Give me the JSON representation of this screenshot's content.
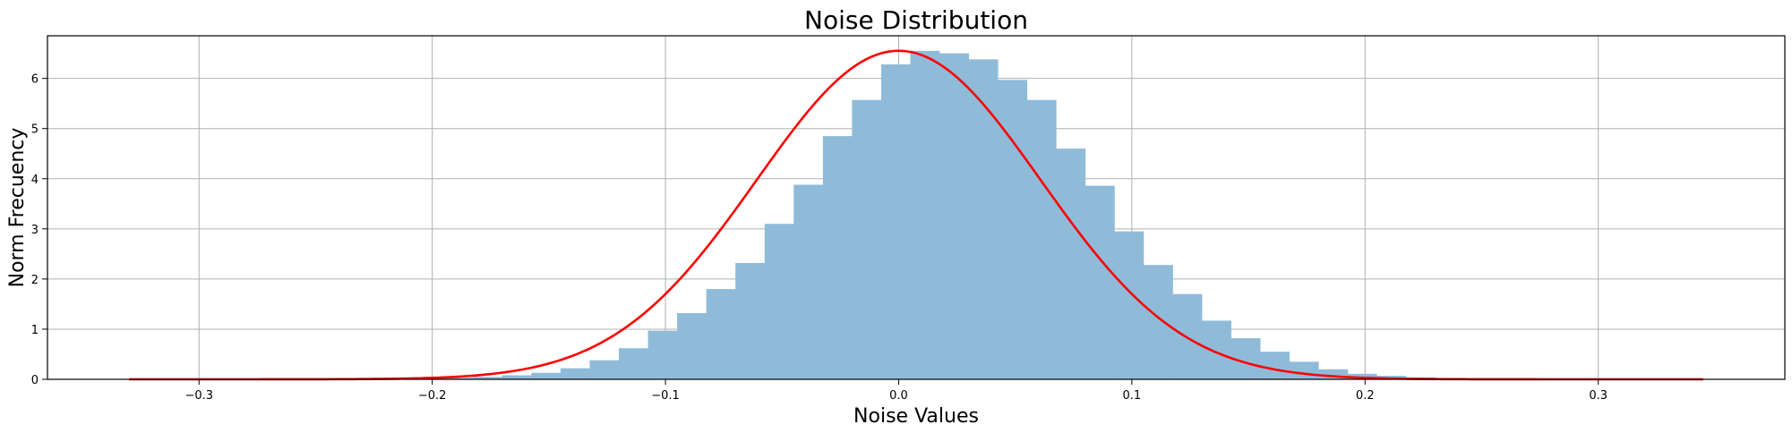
{
  "chart_data": {
    "type": "bar",
    "subtype": "histogram-with-fit",
    "title": "Noise Distribution",
    "xlabel": "Noise Values",
    "ylabel": "Norm Frecuency",
    "xlim": [
      -0.365,
      0.38
    ],
    "ylim": [
      0,
      6.85
    ],
    "grid": true,
    "x_ticks": [
      -0.3,
      -0.2,
      -0.1,
      0.0,
      0.1,
      0.2,
      0.3
    ],
    "x_tick_labels": [
      "−0.3",
      "−0.2",
      "−0.1",
      "0.0",
      "0.1",
      "0.2",
      "0.3"
    ],
    "y_ticks": [
      0,
      1,
      2,
      3,
      4,
      5,
      6
    ],
    "y_tick_labels": [
      "0",
      "1",
      "2",
      "3",
      "4",
      "5",
      "6"
    ],
    "histogram": {
      "color": "#8fbbd9",
      "bin_start": -0.3325,
      "bin_width": 0.0125,
      "values": [
        0.0,
        0.0,
        0.0,
        0.0,
        0.0,
        0.0,
        0.0,
        0.0,
        0.0,
        0.0,
        0.02,
        0.03,
        0.05,
        0.08,
        0.13,
        0.22,
        0.38,
        0.62,
        0.97,
        1.32,
        1.8,
        2.32,
        3.1,
        3.88,
        4.85,
        5.57,
        6.28,
        6.55,
        6.5,
        6.38,
        5.97,
        5.57,
        4.6,
        3.86,
        2.95,
        2.28,
        1.7,
        1.17,
        0.82,
        0.55,
        0.35,
        0.2,
        0.11,
        0.07,
        0.04,
        0.02,
        0.01,
        0.0,
        0.0,
        0.0,
        0.0,
        0.0,
        0.0,
        0.0
      ]
    },
    "fit_curve": {
      "type": "normal",
      "color": "#ff0000",
      "mean": 0.0,
      "std": 0.0609,
      "x_range": [
        -0.33,
        0.345
      ]
    }
  }
}
